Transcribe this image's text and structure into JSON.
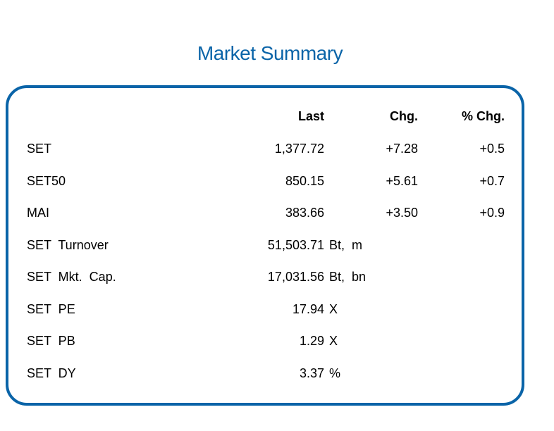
{
  "title": "Market Summary",
  "colors": {
    "accent": "#0a64a8"
  },
  "headers": {
    "last": "Last",
    "chg": "Chg.",
    "pct_chg": "% Chg."
  },
  "rows": [
    {
      "label": "SET",
      "last": "1,377.72",
      "unit": "",
      "chg": "+7.28",
      "pct_chg": "+0.5"
    },
    {
      "label": "SET50",
      "last": "850.15",
      "unit": "",
      "chg": "+5.61",
      "pct_chg": "+0.7"
    },
    {
      "label": "MAI",
      "last": "383.66",
      "unit": "",
      "chg": "+3.50",
      "pct_chg": "+0.9"
    },
    {
      "label": "SET  Turnover",
      "last": "51,503.71",
      "unit": "Bt,  m",
      "chg": "",
      "pct_chg": ""
    },
    {
      "label": "SET  Mkt.  Cap.",
      "last": "17,031.56",
      "unit": "Bt,  bn",
      "chg": "",
      "pct_chg": ""
    },
    {
      "label": "SET  PE",
      "last": "17.94",
      "unit": "X",
      "chg": "",
      "pct_chg": ""
    },
    {
      "label": "SET  PB",
      "last": "1.29",
      "unit": "X",
      "chg": "",
      "pct_chg": ""
    },
    {
      "label": "SET  DY",
      "last": "3.37",
      "unit": "%",
      "chg": "",
      "pct_chg": ""
    }
  ]
}
